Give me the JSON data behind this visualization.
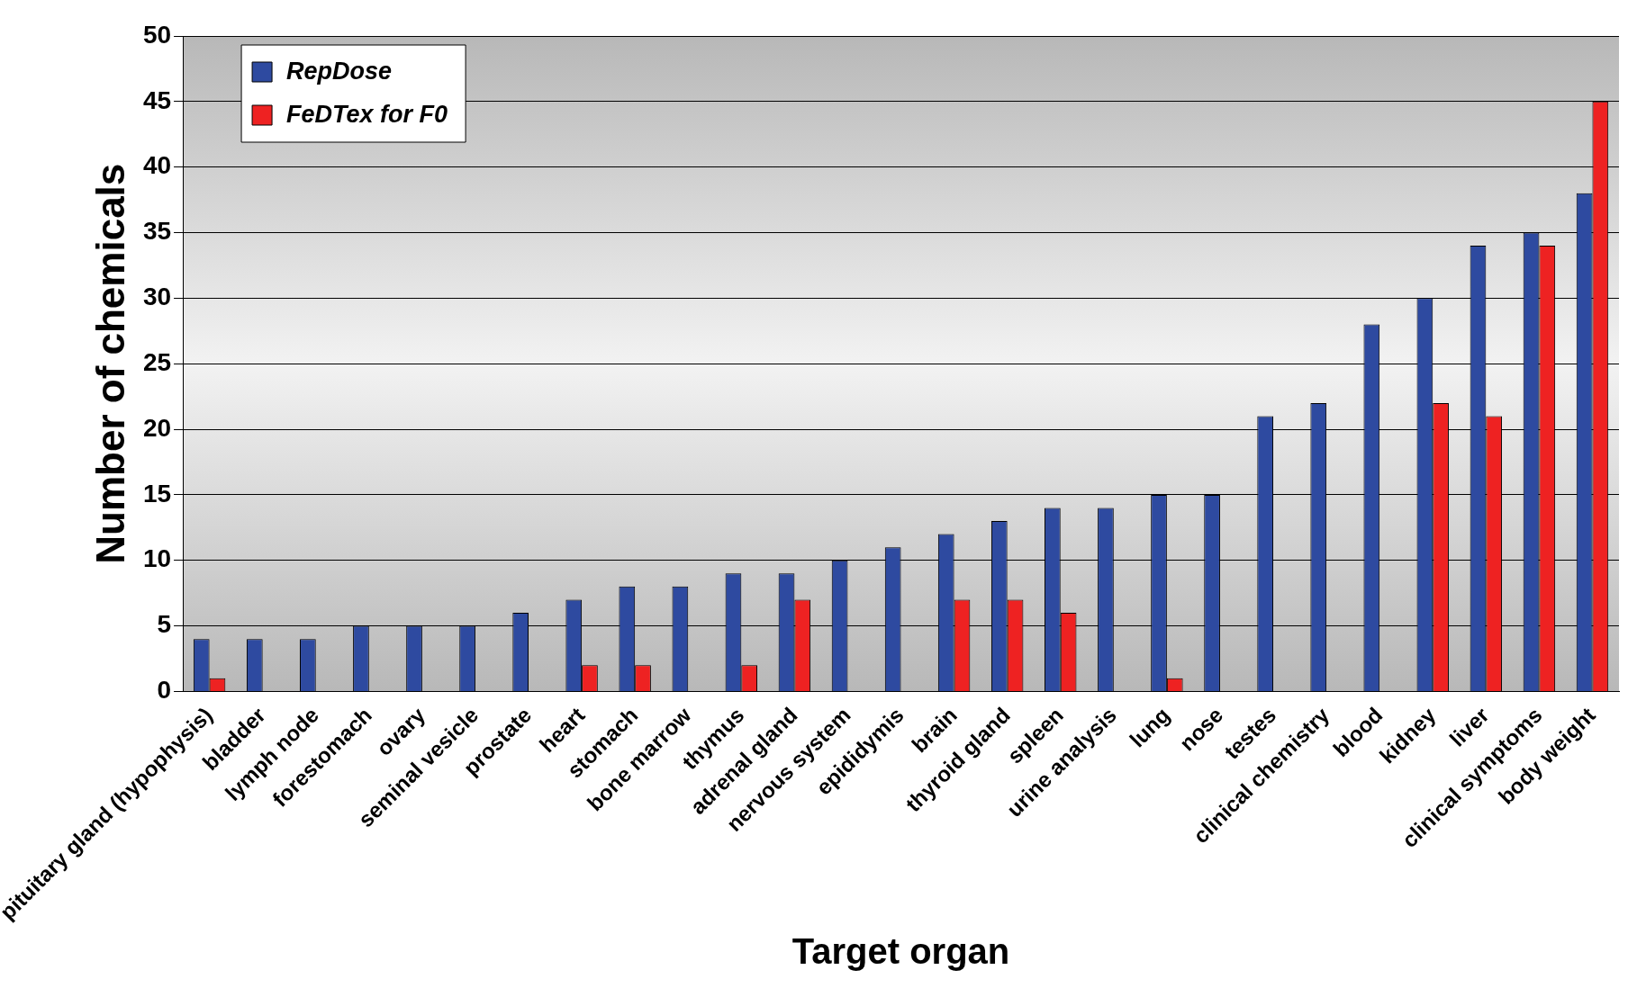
{
  "chart_data": {
    "type": "bar",
    "xlabel": "Target organ",
    "ylabel": "Number of chemicals",
    "categories": [
      "pituitary gland (hypophysis)",
      "bladder",
      "lymph node",
      "forestomach",
      "ovary",
      "seminal vesicle",
      "prostate",
      "heart",
      "stomach",
      "bone marrow",
      "thymus",
      "adrenal gland",
      "nervous system",
      "epididymis",
      "brain",
      "thyroid gland",
      "spleen",
      "urine analysis",
      "lung",
      "nose",
      "testes",
      "clinical chemistry",
      "blood",
      "kidney",
      "liver",
      "clinical symptoms",
      "body weight"
    ],
    "series": [
      {
        "name": "RepDose",
        "color": "#2e4aa0",
        "values": [
          4,
          4,
          4,
          5,
          5,
          5,
          6,
          7,
          8,
          8,
          9,
          9,
          10,
          11,
          12,
          13,
          14,
          14,
          15,
          15,
          21,
          22,
          28,
          30,
          34,
          35,
          38
        ]
      },
      {
        "name": "FeDTex for F0",
        "color": "#ee2222",
        "values": [
          1,
          null,
          null,
          null,
          null,
          null,
          null,
          2,
          2,
          null,
          2,
          7,
          null,
          null,
          7,
          7,
          6,
          null,
          1,
          null,
          null,
          null,
          null,
          22,
          21,
          34,
          45
        ]
      }
    ],
    "ylim": [
      0,
      50
    ],
    "yticks": [
      0,
      5,
      10,
      15,
      20,
      25,
      30,
      35,
      40,
      45,
      50
    ],
    "grid": "y",
    "legend": "top left"
  }
}
